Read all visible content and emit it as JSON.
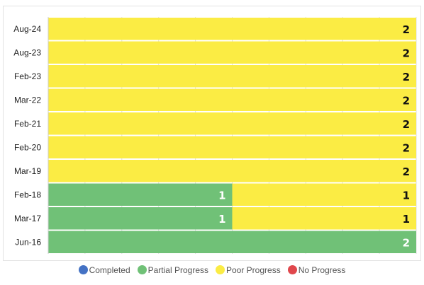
{
  "chart_data": {
    "type": "bar",
    "orientation": "horizontal",
    "stacked": true,
    "categories": [
      "Aug-24",
      "Aug-23",
      "Feb-23",
      "Mar-22",
      "Feb-21",
      "Feb-20",
      "Mar-19",
      "Feb-18",
      "Mar-17",
      "Jun-16"
    ],
    "series": [
      {
        "name": "Completed",
        "color": "#4472c4",
        "values": [
          0,
          0,
          0,
          0,
          0,
          0,
          0,
          0,
          0,
          0
        ]
      },
      {
        "name": "Partial Progress",
        "color": "#70c177",
        "values": [
          0,
          0,
          0,
          0,
          0,
          0,
          0,
          1,
          1,
          2
        ]
      },
      {
        "name": "Poor Progress",
        "color": "#fbec44",
        "values": [
          2,
          2,
          2,
          2,
          2,
          2,
          2,
          1,
          1,
          0
        ]
      },
      {
        "name": "No Progress",
        "color": "#e0474c",
        "values": [
          0,
          0,
          0,
          0,
          0,
          0,
          0,
          0,
          0,
          0
        ]
      }
    ],
    "xlim": [
      0,
      2
    ],
    "legend": "bottom",
    "grid": true,
    "data_labels": true
  }
}
